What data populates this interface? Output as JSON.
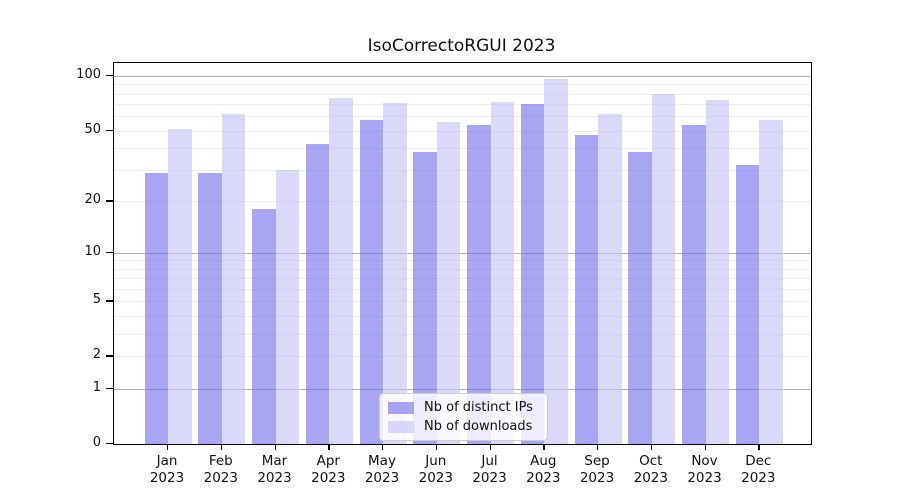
{
  "title": "IsoCorrectoRGUI 2023",
  "chart_data": {
    "type": "bar",
    "title": "IsoCorrectoRGUI 2023",
    "xlabel": "",
    "ylabel": "",
    "categories": [
      "Jan",
      "Feb",
      "Mar",
      "Apr",
      "May",
      "Jun",
      "Jul",
      "Aug",
      "Sep",
      "Oct",
      "Nov",
      "Dec"
    ],
    "x_tick_year": "2023",
    "series": [
      {
        "name": "Nb of distinct IPs",
        "color": "rgba(110,105,235,0.6)",
        "values": [
          29,
          29,
          18,
          42,
          57,
          38,
          54,
          70,
          47,
          38,
          54,
          32
        ]
      },
      {
        "name": "Nb of downloads",
        "color": "rgba(195,192,247,0.6)",
        "values": [
          51,
          62,
          30,
          76,
          71,
          56,
          72,
          96,
          62,
          80,
          74,
          57
        ]
      }
    ],
    "yscale": "log1p",
    "ylim": [
      0,
      118
    ],
    "y_tick_values": [
      0,
      1,
      2,
      5,
      10,
      20,
      50,
      100
    ],
    "y_tick_labels": [
      "0",
      "1",
      "2",
      "5",
      "10",
      "20",
      "50",
      "100"
    ],
    "y_major_gridlines": [
      1,
      10,
      100
    ],
    "y_minor_gridlines": [
      2,
      3,
      4,
      5,
      6,
      7,
      8,
      9,
      20,
      30,
      40,
      50,
      60,
      70,
      80,
      90
    ],
    "grid": true,
    "legend_position": "bottom-center"
  },
  "colors": {
    "major_gridline": "#b2b2b2",
    "minor_gridline": "#ededed",
    "frame": "#000000",
    "background": "#ffffff"
  }
}
